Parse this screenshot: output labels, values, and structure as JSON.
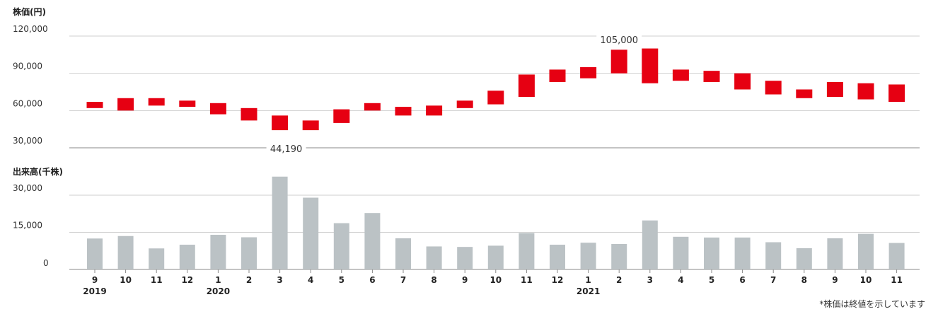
{
  "chart_data": [
    {
      "type": "candlestick",
      "ylabel": "株価(円)",
      "yticks": [
        "120,000",
        "90,000",
        "60,000",
        "30,000"
      ],
      "ylim": [
        30000,
        120000
      ],
      "categories": [
        "9",
        "10",
        "11",
        "12",
        "1",
        "2",
        "3",
        "4",
        "5",
        "6",
        "7",
        "8",
        "9",
        "10",
        "11",
        "12",
        "1",
        "2",
        "3",
        "4",
        "5",
        "6",
        "7",
        "8",
        "9",
        "10",
        "11"
      ],
      "year_labels": [
        {
          "index": 0,
          "label": "2019"
        },
        {
          "index": 4,
          "label": "2020"
        },
        {
          "index": 16,
          "label": "2021"
        }
      ],
      "low": [
        62000,
        60000,
        64000,
        63000,
        57000,
        52000,
        44190,
        44190,
        50000,
        60000,
        56000,
        56000,
        62000,
        65000,
        71000,
        83000,
        86000,
        90000,
        82000,
        84000,
        83000,
        77000,
        73000,
        70000,
        71000,
        69000,
        67000
      ],
      "high": [
        67000,
        70000,
        70000,
        68000,
        66000,
        62000,
        56000,
        52000,
        61000,
        66000,
        63000,
        64000,
        68000,
        76000,
        89000,
        93000,
        95000,
        109000,
        110000,
        93000,
        92000,
        90000,
        84000,
        77000,
        83000,
        82000,
        81000
      ],
      "annotations": [
        {
          "index": 6,
          "value": 44190,
          "label": "44,190"
        },
        {
          "index": 17,
          "value": 105000,
          "label": "105,000"
        }
      ],
      "color": "#e60012"
    },
    {
      "type": "bar",
      "ylabel": "出来高(千株)",
      "yticks": [
        "30,000",
        "15,000",
        "0"
      ],
      "ylim": [
        0,
        30000
      ],
      "categories": [
        "9",
        "10",
        "11",
        "12",
        "1",
        "2",
        "3",
        "4",
        "5",
        "6",
        "7",
        "8",
        "9",
        "10",
        "11",
        "12",
        "1",
        "2",
        "3",
        "4",
        "5",
        "6",
        "7",
        "8",
        "9",
        "10",
        "11"
      ],
      "values": [
        12500,
        13500,
        8500,
        10000,
        14000,
        13000,
        37500,
        29000,
        18700,
        22800,
        12600,
        9300,
        9100,
        9600,
        14700,
        10000,
        10800,
        10300,
        19800,
        13200,
        12900,
        12900,
        11000,
        8600,
        12600,
        14400,
        10700
      ],
      "color": "#bbc2c5"
    }
  ],
  "footnote": "*株価は終値を示しています"
}
